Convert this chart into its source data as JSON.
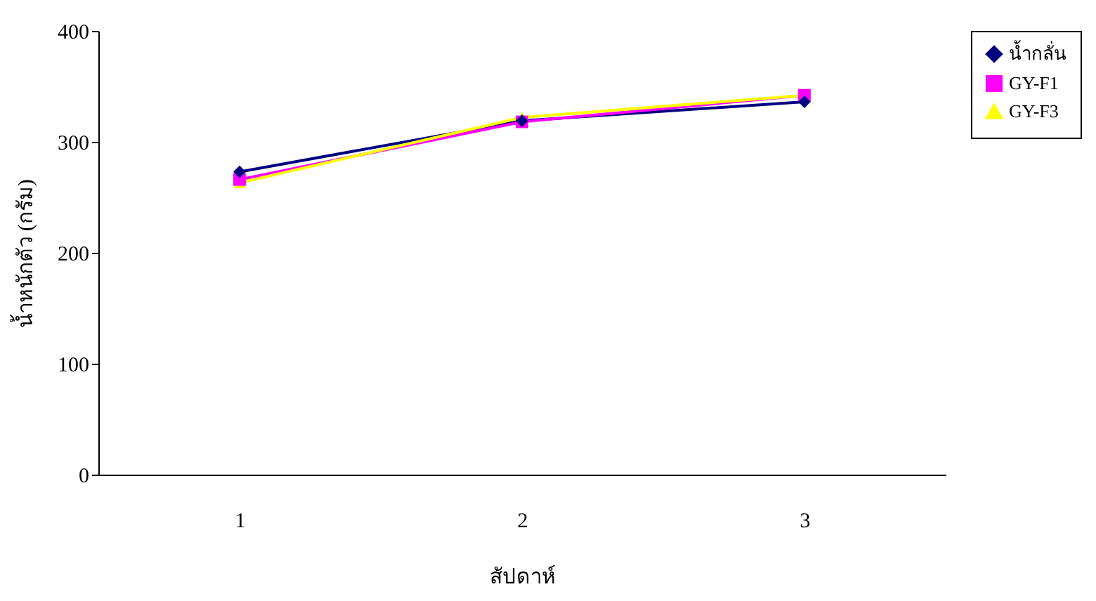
{
  "chart_data": {
    "type": "line",
    "xlabel": "สัปดาห์",
    "ylabel": "น้ำหนักตัว (กรัม)",
    "categories": [
      "1",
      "2",
      "3"
    ],
    "ylim": [
      0,
      400
    ],
    "yticks": [
      0,
      100,
      200,
      300,
      400
    ],
    "grid": false,
    "legend": "right",
    "line_style": "solid",
    "series": [
      {
        "name": "น้ำกลั่น",
        "color": "#000080",
        "marker": "diamond",
        "values": [
          273,
          319,
          336
        ]
      },
      {
        "name": "GY-F1",
        "color": "#ff00ff",
        "marker": "square",
        "values": [
          266,
          318,
          342
        ]
      },
      {
        "name": "GY-F3",
        "color": "#ffff00",
        "marker": "triangle",
        "values": [
          263,
          322,
          342
        ]
      }
    ]
  }
}
